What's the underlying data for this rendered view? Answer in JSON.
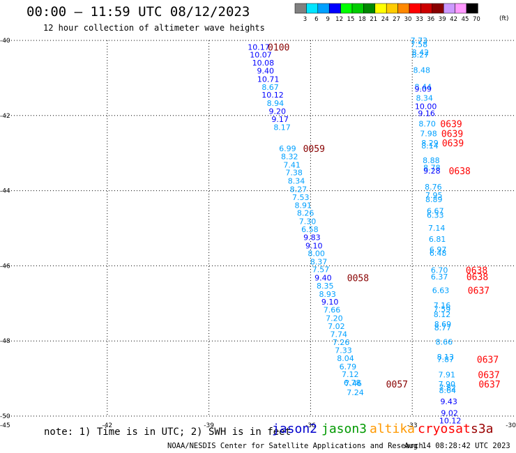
{
  "header": {
    "title": "00:00 – 11:59 UTC 08/12/2023",
    "subtitle": "12 hour collection of altimeter wave heights"
  },
  "footer": {
    "note": "note: 1) Time is in UTC; 2) SWH is in feet",
    "satellites": [
      {
        "name": "jason2",
        "color": "#0000cc"
      },
      {
        "name": "jason3",
        "color": "#009900"
      },
      {
        "name": "altika",
        "color": "#ff9900"
      },
      {
        "name": "cryosat",
        "color": "#ff0000"
      },
      {
        "name": "s3a",
        "color": "#990000"
      }
    ],
    "credit": "NOAA/NESDIS Center for Satellite Applications and Research",
    "timestamp": "Aug 14 08:28:42 UTC 2023"
  },
  "color_scale": {
    "unit": "(ft)",
    "ticks": [
      "3",
      "6",
      "9",
      "12",
      "15",
      "18",
      "21",
      "24",
      "27",
      "30",
      "33",
      "36",
      "39",
      "42",
      "45",
      "70"
    ],
    "colors": [
      "#808080",
      "#00e5ff",
      "#00a0ff",
      "#0000ff",
      "#00ff00",
      "#00cc00",
      "#008800",
      "#ffff00",
      "#ffcc00",
      "#ff8800",
      "#ff0000",
      "#cc0000",
      "#880000",
      "#cc99ff",
      "#ff99ff",
      "#000000"
    ]
  },
  "chart_data": {
    "type": "scatter",
    "title": "00:00 – 11:59 UTC 08/12/2023",
    "subtitle": "12 hour collection of altimeter wave heights",
    "xlabel": "",
    "ylabel": "",
    "xlim": [
      -45,
      -30
    ],
    "ylim": [
      -50,
      -40
    ],
    "x_ticks": [
      "-45",
      "-42",
      "-39",
      "-36",
      "-33",
      "-30"
    ],
    "y_ticks": [
      "-40",
      "-42",
      "-44",
      "-46",
      "-48",
      "-50"
    ],
    "x_tick_values": [
      -45,
      -42,
      -39,
      -36,
      -33,
      -30
    ],
    "y_tick_values": [
      -40,
      -42,
      -44,
      -46,
      -48,
      -50
    ],
    "grid": true,
    "value_colors": {
      "low": "#00a0ff",
      "mid": "#0000ff"
    },
    "time_color": "#880000",
    "cryosat_time_color": "#ff0000",
    "points": [
      {
        "lon": -37.53,
        "lat": -40.18,
        "value": "10.17"
      },
      {
        "lon": -37.47,
        "lat": -40.38,
        "value": "10.07"
      },
      {
        "lon": -37.4,
        "lat": -40.59,
        "value": "10.08"
      },
      {
        "lon": -37.33,
        "lat": -40.81,
        "value": "9.40"
      },
      {
        "lon": -37.25,
        "lat": -41.03,
        "value": "10.71"
      },
      {
        "lon": -37.19,
        "lat": -41.24,
        "value": "8.67"
      },
      {
        "lon": -37.12,
        "lat": -41.45,
        "value": "10.12"
      },
      {
        "lon": -37.04,
        "lat": -41.67,
        "value": "8.94"
      },
      {
        "lon": -36.98,
        "lat": -41.88,
        "value": "9.20"
      },
      {
        "lon": -36.9,
        "lat": -42.1,
        "value": "9.17"
      },
      {
        "lon": -36.84,
        "lat": -42.31,
        "value": "8.17"
      },
      {
        "lon": -36.68,
        "lat": -42.88,
        "value": "6.99"
      },
      {
        "lon": -36.62,
        "lat": -43.09,
        "value": "8.32"
      },
      {
        "lon": -36.55,
        "lat": -43.31,
        "value": "7.41"
      },
      {
        "lon": -36.49,
        "lat": -43.52,
        "value": "7.38"
      },
      {
        "lon": -36.42,
        "lat": -43.74,
        "value": "8.34"
      },
      {
        "lon": -36.36,
        "lat": -43.96,
        "value": "8.27"
      },
      {
        "lon": -36.29,
        "lat": -44.17,
        "value": "7.53"
      },
      {
        "lon": -36.22,
        "lat": -44.39,
        "value": "8.91"
      },
      {
        "lon": -36.15,
        "lat": -44.59,
        "value": "8.26"
      },
      {
        "lon": -36.09,
        "lat": -44.81,
        "value": "7.30"
      },
      {
        "lon": -36.02,
        "lat": -45.03,
        "value": "6.58"
      },
      {
        "lon": -35.96,
        "lat": -45.24,
        "value": "9.83"
      },
      {
        "lon": -35.9,
        "lat": -45.46,
        "value": "9.10"
      },
      {
        "lon": -35.83,
        "lat": -45.67,
        "value": "8.00"
      },
      {
        "lon": -35.76,
        "lat": -45.89,
        "value": "8.37"
      },
      {
        "lon": -35.7,
        "lat": -46.09,
        "value": "7.57"
      },
      {
        "lon": -35.63,
        "lat": -46.32,
        "value": "9.40"
      },
      {
        "lon": -35.57,
        "lat": -46.53,
        "value": "8.35"
      },
      {
        "lon": -35.5,
        "lat": -46.75,
        "value": "8.93"
      },
      {
        "lon": -35.43,
        "lat": -46.96,
        "value": "9.10"
      },
      {
        "lon": -35.37,
        "lat": -47.17,
        "value": "7.66"
      },
      {
        "lon": -35.3,
        "lat": -47.39,
        "value": "7.20"
      },
      {
        "lon": -35.24,
        "lat": -47.61,
        "value": "7.02"
      },
      {
        "lon": -35.17,
        "lat": -47.82,
        "value": "7.74"
      },
      {
        "lon": -35.1,
        "lat": -48.03,
        "value": "7.26"
      },
      {
        "lon": -35.03,
        "lat": -48.25,
        "value": "7.33"
      },
      {
        "lon": -34.97,
        "lat": -48.46,
        "value": "8.04"
      },
      {
        "lon": -34.9,
        "lat": -48.68,
        "value": "6.79"
      },
      {
        "lon": -34.83,
        "lat": -48.89,
        "value": "7.12"
      },
      {
        "lon": -34.77,
        "lat": -49.11,
        "value": "6.78"
      },
      {
        "lon": -34.74,
        "lat": -49.13,
        "value": "7.46"
      },
      {
        "lon": -34.68,
        "lat": -49.37,
        "value": "7.24"
      },
      {
        "lon": -32.8,
        "lat": -40.0,
        "value": "7.73"
      },
      {
        "lon": -32.8,
        "lat": -40.1,
        "value": "7.58"
      },
      {
        "lon": -32.76,
        "lat": -40.32,
        "value": "8.42"
      },
      {
        "lon": -32.76,
        "lat": -40.38,
        "value": "8.27"
      },
      {
        "lon": -32.72,
        "lat": -40.79,
        "value": "8.48"
      },
      {
        "lon": -32.68,
        "lat": -41.23,
        "value": "8.44"
      },
      {
        "lon": -32.68,
        "lat": -41.29,
        "value": "9.09"
      },
      {
        "lon": -32.64,
        "lat": -41.53,
        "value": "8.34"
      },
      {
        "lon": -32.6,
        "lat": -41.75,
        "value": "10.00"
      },
      {
        "lon": -32.58,
        "lat": -41.94,
        "value": "9.16"
      },
      {
        "lon": -32.56,
        "lat": -42.22,
        "value": "8.70"
      },
      {
        "lon": -32.52,
        "lat": -42.48,
        "value": "7.98"
      },
      {
        "lon": -32.48,
        "lat": -42.73,
        "value": "8.29"
      },
      {
        "lon": -32.48,
        "lat": -42.8,
        "value": "8.14"
      },
      {
        "lon": -32.44,
        "lat": -43.19,
        "value": "8.88"
      },
      {
        "lon": -32.42,
        "lat": -43.39,
        "value": "8.78"
      },
      {
        "lon": -32.42,
        "lat": -43.47,
        "value": "9.28"
      },
      {
        "lon": -32.38,
        "lat": -43.9,
        "value": "8.76"
      },
      {
        "lon": -32.36,
        "lat": -44.12,
        "value": "7.95"
      },
      {
        "lon": -32.36,
        "lat": -44.23,
        "value": "8.89"
      },
      {
        "lon": -32.32,
        "lat": -44.54,
        "value": "6.67"
      },
      {
        "lon": -32.32,
        "lat": -44.65,
        "value": "6.33"
      },
      {
        "lon": -32.28,
        "lat": -44.99,
        "value": "7.14"
      },
      {
        "lon": -32.26,
        "lat": -45.29,
        "value": "6.81"
      },
      {
        "lon": -32.24,
        "lat": -45.57,
        "value": "6.97"
      },
      {
        "lon": -32.24,
        "lat": -45.66,
        "value": "6.48"
      },
      {
        "lon": -32.2,
        "lat": -46.11,
        "value": "6.70"
      },
      {
        "lon": -32.2,
        "lat": -46.29,
        "value": "6.37"
      },
      {
        "lon": -32.16,
        "lat": -46.65,
        "value": "6.63"
      },
      {
        "lon": -32.12,
        "lat": -47.05,
        "value": "7.16"
      },
      {
        "lon": -32.12,
        "lat": -47.15,
        "value": "7.59"
      },
      {
        "lon": -32.12,
        "lat": -47.29,
        "value": "8.12"
      },
      {
        "lon": -32.1,
        "lat": -47.55,
        "value": "8.69"
      },
      {
        "lon": -32.1,
        "lat": -47.64,
        "value": "8.77"
      },
      {
        "lon": -32.06,
        "lat": -48.02,
        "value": "8.66"
      },
      {
        "lon": -32.02,
        "lat": -48.42,
        "value": "8.13"
      },
      {
        "lon": -32.02,
        "lat": -48.49,
        "value": "7.87"
      },
      {
        "lon": -31.98,
        "lat": -48.9,
        "value": "7.91"
      },
      {
        "lon": -31.98,
        "lat": -49.15,
        "value": "7.90"
      },
      {
        "lon": -31.96,
        "lat": -49.24,
        "value": "7.82"
      },
      {
        "lon": -31.96,
        "lat": -49.31,
        "value": "8.64"
      },
      {
        "lon": -31.92,
        "lat": -49.61,
        "value": "9.43"
      },
      {
        "lon": -31.9,
        "lat": -49.92,
        "value": "9.02"
      },
      {
        "lon": -31.88,
        "lat": -50.12,
        "value": "10.12"
      }
    ],
    "time_labels": [
      {
        "lon": -36.94,
        "lat": -40.18,
        "text": "0100",
        "sat": "s3a"
      },
      {
        "lon": -35.9,
        "lat": -42.88,
        "text": "0059",
        "sat": "s3a"
      },
      {
        "lon": -34.6,
        "lat": -46.32,
        "text": "0058",
        "sat": "s3a"
      },
      {
        "lon": -33.45,
        "lat": -49.15,
        "text": "0057",
        "sat": "s3a"
      },
      {
        "lon": -31.85,
        "lat": -42.22,
        "text": "0639",
        "sat": "cryosat"
      },
      {
        "lon": -31.82,
        "lat": -42.48,
        "text": "0639",
        "sat": "cryosat"
      },
      {
        "lon": -31.8,
        "lat": -42.73,
        "text": "0639",
        "sat": "cryosat"
      },
      {
        "lon": -31.6,
        "lat": -43.47,
        "text": "0638",
        "sat": "cryosat"
      },
      {
        "lon": -31.1,
        "lat": -46.11,
        "text": "0638",
        "sat": "cryosat"
      },
      {
        "lon": -31.08,
        "lat": -46.29,
        "text": "0638",
        "sat": "cryosat"
      },
      {
        "lon": -31.04,
        "lat": -46.65,
        "text": "0637",
        "sat": "cryosat"
      },
      {
        "lon": -30.77,
        "lat": -48.49,
        "text": "0637",
        "sat": "cryosat"
      },
      {
        "lon": -30.74,
        "lat": -48.9,
        "text": "0637",
        "sat": "cryosat"
      },
      {
        "lon": -30.72,
        "lat": -49.15,
        "text": "0637",
        "sat": "cryosat"
      }
    ]
  }
}
